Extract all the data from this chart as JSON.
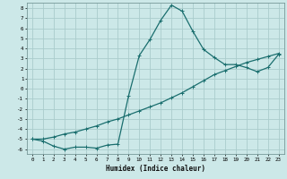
{
  "xlabel": "Humidex (Indice chaleur)",
  "bg_color": "#cce8e8",
  "grid_color": "#aacccc",
  "line_color": "#1a6e6e",
  "xlim": [
    -0.5,
    23.5
  ],
  "ylim": [
    -6.5,
    8.5
  ],
  "xticks": [
    0,
    1,
    2,
    3,
    4,
    5,
    6,
    7,
    8,
    9,
    10,
    11,
    12,
    13,
    14,
    15,
    16,
    17,
    18,
    19,
    20,
    21,
    22,
    23
  ],
  "yticks": [
    -6,
    -5,
    -4,
    -3,
    -2,
    -1,
    0,
    1,
    2,
    3,
    4,
    5,
    6,
    7,
    8
  ],
  "line1_x": [
    0,
    1,
    2,
    3,
    4,
    5,
    6,
    7,
    8,
    9,
    10,
    11,
    12,
    13,
    14,
    15,
    16,
    17,
    18,
    19,
    20,
    21,
    22,
    23
  ],
  "line1_y": [
    -5.0,
    -5.2,
    -5.7,
    -6.0,
    -5.8,
    -5.8,
    -5.9,
    -5.6,
    -5.5,
    -0.7,
    3.3,
    4.9,
    6.8,
    8.3,
    7.7,
    5.7,
    3.9,
    3.1,
    2.4,
    2.4,
    2.1,
    1.7,
    2.1,
    3.4
  ],
  "line2_x": [
    0,
    1,
    2,
    3,
    4,
    5,
    6,
    7,
    8,
    9,
    10,
    11,
    12,
    13,
    14,
    15,
    16,
    17,
    18,
    19,
    20,
    21,
    22,
    23
  ],
  "line2_y": [
    -5.0,
    -5.0,
    -4.8,
    -4.5,
    -4.3,
    -4.0,
    -3.7,
    -3.3,
    -3.0,
    -2.6,
    -2.2,
    -1.8,
    -1.4,
    -0.9,
    -0.4,
    0.2,
    0.8,
    1.4,
    1.8,
    2.2,
    2.6,
    2.9,
    3.2,
    3.5
  ]
}
